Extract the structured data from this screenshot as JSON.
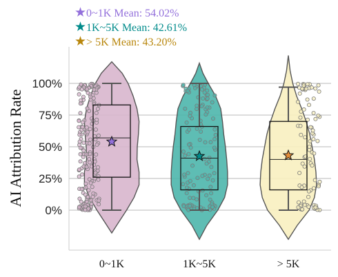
{
  "chart_data": {
    "type": "violin",
    "ylabel": "AI Attribution Rate",
    "xlabel": "",
    "ylim": [
      -0.45,
      1.3
    ],
    "yticks": [
      {
        "value": 0.0,
        "label": "0%"
      },
      {
        "value": 0.25,
        "label": "25%"
      },
      {
        "value": 0.5,
        "label": "50%"
      },
      {
        "value": 0.75,
        "label": "75%"
      },
      {
        "value": 1.0,
        "label": "100%"
      }
    ],
    "grid": "horizontal",
    "legend_position": "top-left, above plot",
    "mean_legend": [
      {
        "symbol": "★",
        "text": "0~1K Mean:  54.02%",
        "color": "#9370DB"
      },
      {
        "symbol": "★",
        "text": "1K~5K Mean:  42.61%",
        "color": "#008B8B"
      },
      {
        "symbol": "★",
        "text": "> 5K Mean:  43.20%",
        "color": "#B8860B"
      }
    ],
    "groups": [
      {
        "label": "0~1K",
        "mean": 0.5402,
        "q1": 0.26,
        "median": 0.57,
        "q3": 0.83,
        "whisker_low": 0.0,
        "whisker_high": 1.0,
        "violin_min": -0.18,
        "violin_max": 1.17,
        "fill": "#D8B6CD",
        "points_fill": "#D8B6CD",
        "star_color": "#9370DB",
        "violin_profile": [
          [
            -0.18,
            0.0
          ],
          [
            -0.1,
            0.22
          ],
          [
            0.0,
            0.5
          ],
          [
            0.1,
            0.75
          ],
          [
            0.2,
            0.92
          ],
          [
            0.3,
            0.92
          ],
          [
            0.4,
            0.85
          ],
          [
            0.5,
            0.86
          ],
          [
            0.6,
            0.9
          ],
          [
            0.7,
            0.92
          ],
          [
            0.8,
            0.85
          ],
          [
            0.9,
            0.72
          ],
          [
            1.0,
            0.55
          ],
          [
            1.08,
            0.35
          ],
          [
            1.17,
            0.0
          ]
        ],
        "n_points": 190
      },
      {
        "label": "1K~5K",
        "mean": 0.4261,
        "q1": 0.16,
        "median": 0.41,
        "q3": 0.66,
        "whisker_low": 0.0,
        "whisker_high": 1.0,
        "violin_min": -0.23,
        "violin_max": 1.16,
        "fill": "#4DB6AC",
        "points_fill": "#4DB6AC",
        "star_color": "#008B8B",
        "violin_profile": [
          [
            -0.23,
            0.0
          ],
          [
            -0.12,
            0.25
          ],
          [
            0.0,
            0.62
          ],
          [
            0.1,
            0.85
          ],
          [
            0.2,
            0.95
          ],
          [
            0.3,
            0.95
          ],
          [
            0.4,
            0.92
          ],
          [
            0.5,
            0.88
          ],
          [
            0.6,
            0.82
          ],
          [
            0.7,
            0.78
          ],
          [
            0.8,
            0.72
          ],
          [
            0.9,
            0.55
          ],
          [
            1.0,
            0.3
          ],
          [
            1.08,
            0.12
          ],
          [
            1.16,
            0.0
          ]
        ],
        "n_points": 120
      },
      {
        "label": "> 5K",
        "mean": 0.432,
        "q1": 0.16,
        "median": 0.4,
        "q3": 0.7,
        "whisker_low": 0.0,
        "whisker_high": 0.97,
        "violin_min": -0.23,
        "violin_max": 1.22,
        "fill": "#F8F0C0",
        "points_fill": "#F8F0C0",
        "star_color": "#E58E3A",
        "violin_profile": [
          [
            -0.23,
            0.0
          ],
          [
            -0.12,
            0.3
          ],
          [
            0.0,
            0.7
          ],
          [
            0.1,
            0.88
          ],
          [
            0.2,
            0.95
          ],
          [
            0.3,
            0.93
          ],
          [
            0.4,
            0.88
          ],
          [
            0.5,
            0.8
          ],
          [
            0.6,
            0.72
          ],
          [
            0.7,
            0.6
          ],
          [
            0.8,
            0.45
          ],
          [
            0.9,
            0.28
          ],
          [
            1.0,
            0.15
          ],
          [
            1.1,
            0.06
          ],
          [
            1.22,
            0.0
          ]
        ],
        "n_points": 90
      }
    ]
  }
}
